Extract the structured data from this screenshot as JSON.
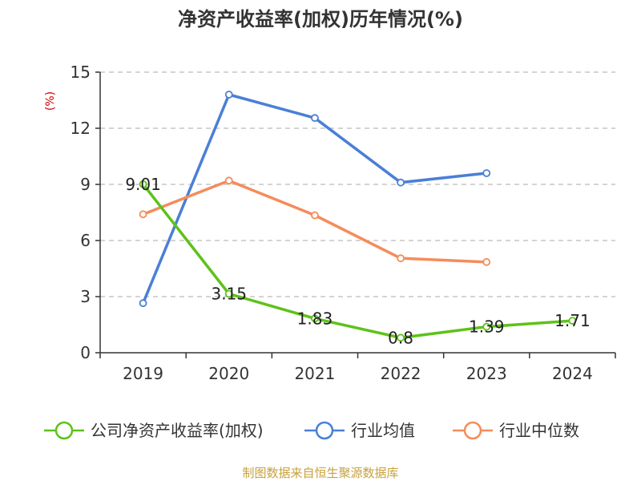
{
  "title": "净资产收益率(加权)历年情况(%)",
  "source": "制图数据来自恒生聚源数据库",
  "colors": {
    "company": "#5ec21a",
    "industry_avg": "#4a7fd6",
    "industry_median": "#f58c5a",
    "grid": "#bbbbbb",
    "axis": "#333333",
    "unit": "#cc0000",
    "source": "#c8a13c"
  },
  "chart_data": {
    "type": "line",
    "title": "净资产收益率(加权)历年情况(%)",
    "ylabel": "(%)",
    "ylim": [
      0,
      15
    ],
    "yticks": [
      0,
      3,
      6,
      9,
      12,
      15
    ],
    "grid": true,
    "legend_position": "bottom",
    "categories": [
      "2019",
      "2020",
      "2021",
      "2022",
      "2023",
      "2024"
    ],
    "series": [
      {
        "name": "公司净资产收益率(加权)",
        "color_key": "company",
        "values": [
          9.01,
          3.15,
          1.83,
          0.8,
          1.39,
          1.71
        ],
        "labels": [
          "9.01",
          "3.15",
          "1.83",
          "0.8",
          "1.39",
          "1.71"
        ]
      },
      {
        "name": "行业均值",
        "color_key": "industry_avg",
        "values": [
          2.65,
          13.8,
          12.55,
          9.1,
          9.6,
          null
        ]
      },
      {
        "name": "行业中位数",
        "color_key": "industry_median",
        "values": [
          7.4,
          9.2,
          7.35,
          5.05,
          4.85,
          null
        ]
      }
    ]
  }
}
